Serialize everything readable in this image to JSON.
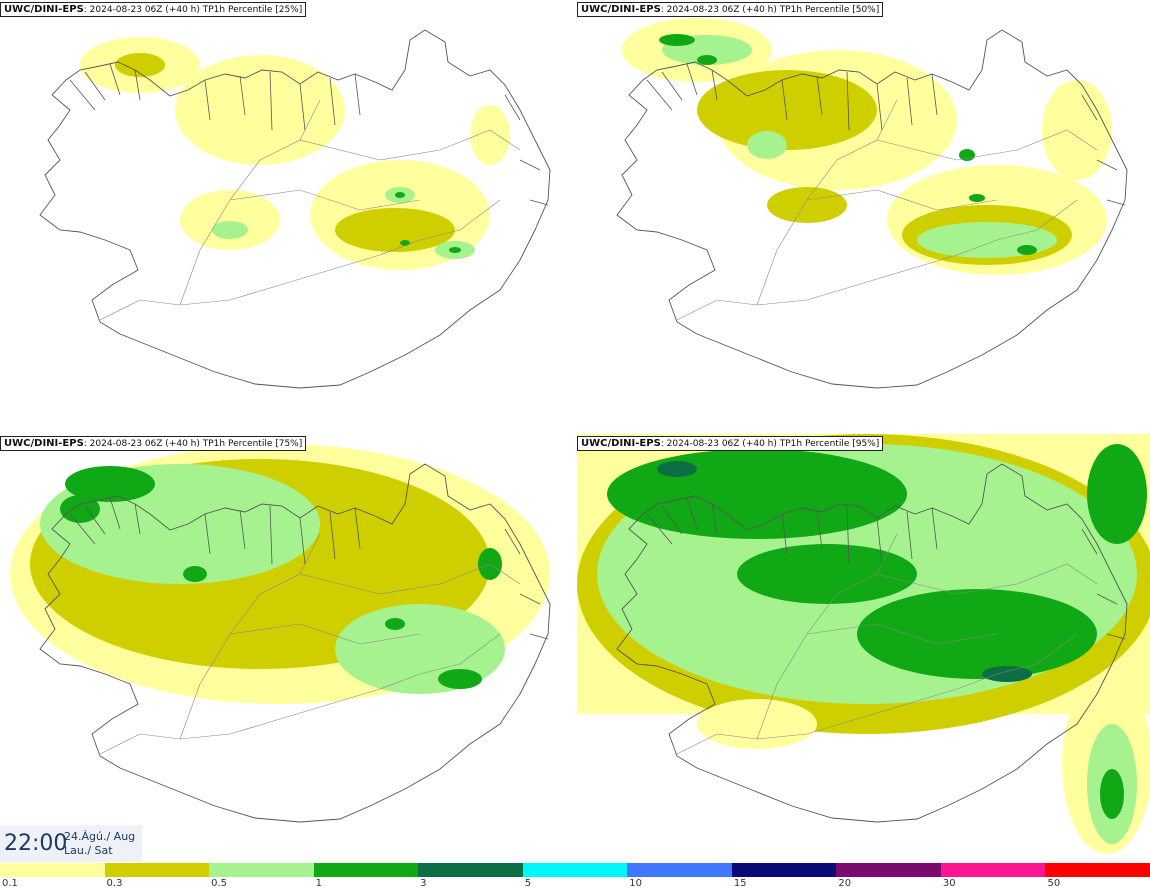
{
  "panels": [
    {
      "source": "UWC/DINI-EPS",
      "detail": ": 2024-08-23 06Z (+40 h) TP1h Percentile [25%]"
    },
    {
      "source": "UWC/DINI-EPS",
      "detail": ": 2024-08-23 06Z (+40 h) TP1h Percentile [50%]"
    },
    {
      "source": "UWC/DINI-EPS",
      "detail": ": 2024-08-23 06Z (+40 h) TP1h Percentile [75%]"
    },
    {
      "source": "UWC/DINI-EPS",
      "detail": ": 2024-08-23 06Z (+40 h) TP1h Percentile [95%]"
    }
  ],
  "timestamp": {
    "time": "22:00",
    "date_line1": "24.Ágú./ Aug",
    "date_line2": "Lau./ Sat"
  },
  "legend": {
    "colors": [
      "#ffff9e",
      "#cfcf00",
      "#a6f28f",
      "#10a815",
      "#0b6e45",
      "#00f7f7",
      "#3f78ff",
      "#0a0a78",
      "#7a0a6e",
      "#ff1493",
      "#ff0000"
    ],
    "labels": [
      "0.1",
      "0.3",
      "0.5",
      "1",
      "3",
      "5",
      "10",
      "15",
      "20",
      "30",
      "50"
    ]
  },
  "colors": {
    "coastline": "#555555",
    "border": "#222222"
  }
}
